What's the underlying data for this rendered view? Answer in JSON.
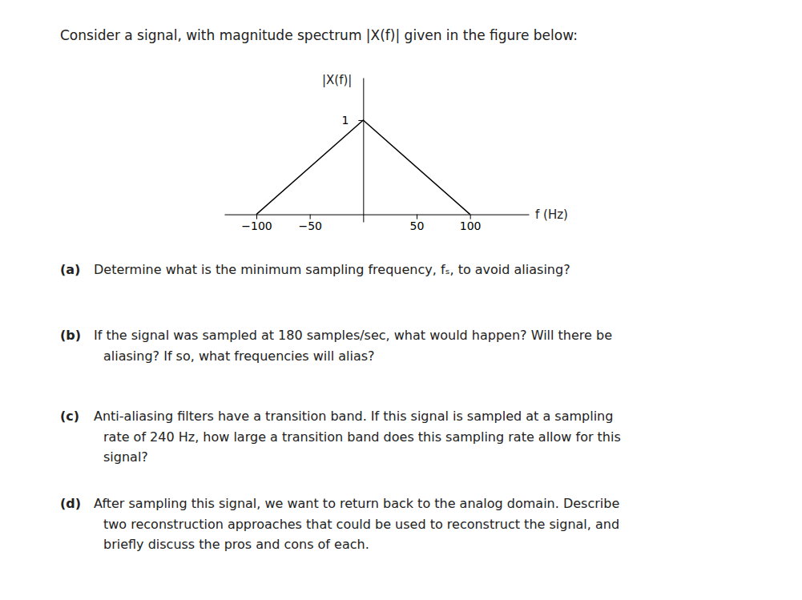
{
  "chart_data": {
    "type": "line",
    "title": "Consider a signal, with magnitude spectrum |X(f)| given in the figure below:",
    "x": [
      -100,
      0,
      100
    ],
    "values": [
      0,
      1,
      0
    ],
    "color": "#000000",
    "xlim": [
      -130,
      155
    ],
    "ylim": [
      -0.08,
      1.45
    ],
    "xticks": [
      {
        "value": -100,
        "label": "−100"
      },
      {
        "value": -50,
        "label": "−50"
      },
      {
        "value": 50,
        "label": "50"
      },
      {
        "value": 100,
        "label": "100"
      }
    ],
    "yticks": [
      1
    ],
    "xlabel": "f (Hz)",
    "ylabel": "|X(f)|",
    "grid": false,
    "annotations": [
      {
        "label": "(a)",
        "text": [
          "Determine what is the minimum sampling frequency, fₛ, to avoid aliasing?"
        ]
      },
      {
        "label": "(b)",
        "text": [
          "If the signal was sampled at 180 samples/sec, what would happen?  Will there be",
          "aliasing? If so, what frequencies will alias?"
        ]
      },
      {
        "label": "(c)",
        "text": [
          "Anti-aliasing filters have a transition band. If this signal is sampled at a sampling",
          "rate of 240 Hz, how large a transition band does this sampling rate allow for this",
          "signal?"
        ]
      },
      {
        "label": "(d)",
        "text": [
          "After sampling this signal, we want to return back to the analog domain. Describe",
          "two reconstruction approaches that could be used to reconstruct the signal, and",
          "briefly discuss the pros and cons of each."
        ]
      }
    ]
  }
}
